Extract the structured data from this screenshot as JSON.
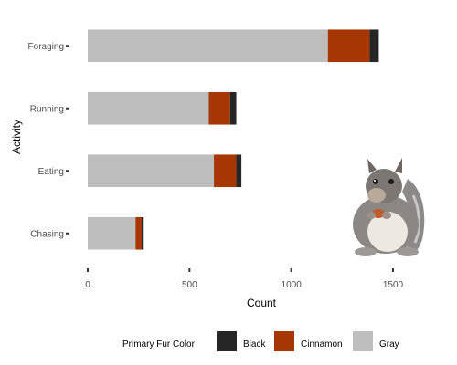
{
  "chart_data": {
    "type": "bar",
    "orientation": "horizontal",
    "stacked": true,
    "categories": [
      "Chasing",
      "Eating",
      "Running",
      "Foraging"
    ],
    "series": [
      {
        "name": "Gray",
        "color": "#bebebe",
        "values": [
          235,
          620,
          595,
          1180
        ]
      },
      {
        "name": "Cinnamon",
        "color": "#a63603",
        "values": [
          30,
          110,
          105,
          205
        ]
      },
      {
        "name": "Black",
        "color": "#262626",
        "values": [
          10,
          25,
          30,
          45
        ]
      }
    ],
    "xlabel": "Count",
    "ylabel": "Activity",
    "xticks": [
      0,
      500,
      1000,
      1500
    ],
    "xlim": [
      0,
      1500
    ],
    "grid": false,
    "legend": {
      "title": "Primary Fur Color",
      "placement": "bottom",
      "entries": [
        "Black",
        "Cinnamon",
        "Gray"
      ]
    }
  },
  "image": {
    "subject": "squirrel-icon"
  }
}
